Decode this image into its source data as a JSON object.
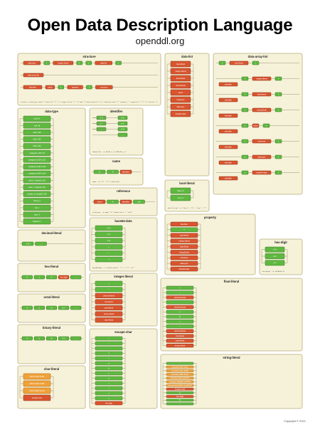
{
  "title": "Open Data Description Language",
  "subtitle": "openddl.org",
  "copyright": "Copyright © 2021",
  "colors": {
    "panel": "#f6f2d9",
    "green": "#5fb840",
    "red": "#d9552f",
    "orange": "#f0a23a"
  },
  "panels": {
    "structure": {
      "title": "structure",
      "nodes": [
        "data-type",
        "[",
        "integer-literal",
        "]",
        "{",
        "data-list",
        "}",
        "data-array-list",
        "identifier",
        "name",
        "{",
        "property",
        "}",
        "structure"
      ],
      "grammar": "structure ::= data-type (name? \"{\" data-list? \"}\" | \"[\" integer-literal \"]\" \"*\"? name? \"{\" data-array-list? \"}\") | identifier name? (\"(\" (property (\",\" property)*)? \")\")? \"{\" structure* \"}\""
    },
    "data_list": {
      "title": "data-list",
      "nodes": [
        "bool-literal",
        "integer-literal",
        "float-literal",
        "string-literal",
        "name",
        "reference",
        "data-type",
        "base64-data"
      ]
    },
    "data_array_list": {
      "title": "data-array-list",
      "nodes": [
        "{",
        "bool-literal",
        "}",
        "identifier",
        "{",
        "integer-literal",
        "}",
        "identifier",
        "{",
        "float-literal",
        "}",
        "identifier",
        "{",
        "string-literal",
        "}",
        "identifier",
        "{",
        "name",
        "}",
        "identifier",
        "{",
        "reference",
        "}",
        "identifier",
        "{",
        "data-type",
        "}",
        "identifier",
        "{",
        "base64-data",
        "}"
      ]
    },
    "data_type": {
      "title": "data-type",
      "nodes": [
        "bool | b",
        "int8 | i8",
        "int16 | i16",
        "int32 | i32",
        "int64 | i64",
        "unsigned_int8 | u8",
        "unsigned_int16 | u16",
        "unsigned_int32 | u32",
        "unsigned_int64 | u64",
        "half | h | float16 | f16",
        "float | f | float32 | f32",
        "double | d | float64 | f64",
        "string | s",
        "ref | r",
        "type | t",
        "base64 | z"
      ]
    },
    "identifier": {
      "title": "identifier",
      "nodes": [
        "A–Z",
        "a–z",
        "_",
        "A–Z",
        "a–z",
        "0–9",
        "_"
      ],
      "grammar": "identifier ::= [A-Za-z_] [0-9A-Za-z_]*"
    },
    "name": {
      "title": "name",
      "nodes": [
        "$",
        "%",
        "identifier"
      ],
      "grammar": "name ::= (\"$\" | \"%\") identifier"
    },
    "reference": {
      "title": "reference",
      "nodes": [
        "name",
        "%",
        "identifier",
        "null"
      ],
      "grammar": "reference ::= name (\"%\" identifier)* | \"null\""
    },
    "bool_literal": {
      "title": "bool-literal",
      "nodes": [
        "false | 0",
        "true | 1"
      ],
      "grammar": "bool-literal ::= \"false\" | \"0\" | \"true\" | \"1\""
    },
    "property": {
      "title": "property",
      "nodes": [
        "identifier",
        "=",
        "bool-literal",
        "integer-literal",
        "float-literal",
        "string-literal",
        "reference",
        "data-type",
        "base64-data"
      ]
    },
    "decimal_literal": {
      "title": "decimal-literal",
      "nodes": [
        "0–9",
        "_"
      ]
    },
    "base64_data": {
      "title": "base64-data",
      "nodes": [
        "A–Z",
        "a–z",
        "0–9",
        "+",
        "/",
        "="
      ],
      "grammar": "base64-data ::= ([A-Za-z0-9] | \"+\" | \"/\")* \"=\"*"
    },
    "hex_digit": {
      "title": "hex-digit",
      "nodes": [
        "0–9",
        "A–F",
        "a–f"
      ],
      "grammar": "hex-digit ::= [0-9A-Fa-f]"
    },
    "hex_literal": {
      "title": "hex-literal",
      "nodes": [
        "0",
        "x",
        "X",
        "hex-digit",
        "_"
      ]
    },
    "octal_literal": {
      "title": "octal-literal",
      "nodes": [
        "0",
        "o",
        "O",
        "0–7",
        "_"
      ]
    },
    "binary_literal": {
      "title": "binary-literal",
      "nodes": [
        "0",
        "b",
        "B",
        "0–1",
        "_"
      ]
    },
    "char_literal": {
      "title": "char-literal",
      "nodes": [
        "ASCII 0x20–0x26",
        "ASCII 0x28–0x5B",
        "ASCII 0x5D–0x7E",
        "escape-char"
      ]
    },
    "integer_literal": {
      "title": "integer-literal",
      "nodes": [
        "+",
        "–",
        "decimal-literal",
        "hex-literal",
        "octal-literal",
        "binary-literal",
        "char-literal"
      ]
    },
    "escape_char": {
      "title": "escape-char",
      "nodes": [
        "\\",
        "\"",
        "'",
        "?",
        "\\",
        "a",
        "b",
        "f",
        "n",
        "r",
        "t",
        "v",
        "x",
        "hex-digit"
      ]
    },
    "float_literal": {
      "title": "float-literal",
      "nodes": [
        "+",
        "–",
        "decimal-literal",
        ".",
        "decimal-literal",
        "e",
        "E",
        "+",
        "–",
        "decimal-literal",
        "hex-literal",
        "octal-literal",
        "binary-literal"
      ]
    },
    "string_literal": {
      "title": "string-literal",
      "nodes": [
        "\"",
        "Unicode 0x20–0x21",
        "Unicode 0x23–0x5B",
        "Unicode 0x5D–0x7E",
        "Unicode 0xA0–0xD7FF",
        "Unicode 0xE000–0xFFFD",
        "Unicode 0x010000–0x10FFFF",
        "escape-char",
        "\\u",
        "hex-digit",
        "\\U",
        "\""
      ]
    }
  }
}
